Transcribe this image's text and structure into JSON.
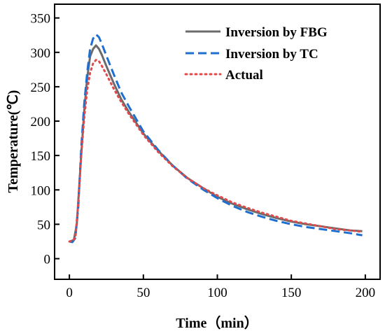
{
  "chart_data": {
    "type": "line",
    "xlabel": "Time（min）",
    "ylabel": "Temperature(℃)",
    "xlim": [
      -10,
      210
    ],
    "ylim": [
      -30,
      370
    ],
    "x_ticks": [
      0,
      50,
      100,
      150,
      200
    ],
    "y_ticks": [
      0,
      50,
      100,
      150,
      200,
      250,
      300,
      350
    ],
    "x_tick_labels": [
      "0",
      "50",
      "100",
      "150",
      "200"
    ],
    "y_tick_labels": [
      "0",
      "50",
      "100",
      "150",
      "200",
      "250",
      "300",
      "350"
    ],
    "grid": false,
    "legend_position": "top-right",
    "series": [
      {
        "name": "Inversion by FBG",
        "color": "#6b6b6b",
        "style": "solid",
        "x": [
          0,
          3,
          5,
          8,
          10,
          12,
          14,
          16,
          18,
          20,
          22,
          25,
          30,
          35,
          40,
          50,
          60,
          70,
          80,
          90,
          100,
          110,
          120,
          130,
          140,
          150,
          160,
          170,
          180,
          190,
          198
        ],
        "y": [
          25,
          27,
          50,
          150,
          215,
          262,
          294,
          305,
          310,
          305,
          296,
          280,
          255,
          232,
          214,
          182,
          157,
          135,
          117,
          103,
          90,
          80,
          72,
          65,
          59,
          54,
          50,
          47,
          44,
          41,
          40
        ]
      },
      {
        "name": "Inversion by TC",
        "color": "#1f6fd0",
        "style": "dashed",
        "x": [
          0,
          2,
          4,
          6,
          8,
          10,
          12,
          14,
          16,
          18,
          20,
          22,
          25,
          30,
          35,
          40,
          50,
          60,
          70,
          80,
          90,
          100,
          110,
          120,
          130,
          140,
          150,
          160,
          170,
          180,
          190,
          198
        ],
        "y": [
          25,
          24,
          30,
          75,
          160,
          225,
          270,
          305,
          320,
          326,
          322,
          312,
          295,
          268,
          242,
          222,
          185,
          158,
          135,
          116,
          101,
          88,
          77,
          68,
          61,
          55,
          50,
          46,
          43,
          40,
          37,
          34
        ]
      },
      {
        "name": "Actual",
        "color": "#e04a4a",
        "style": "dotted",
        "x": [
          0,
          2,
          4,
          6,
          8,
          10,
          12,
          14,
          16,
          18,
          20,
          22,
          25,
          30,
          35,
          40,
          50,
          60,
          70,
          80,
          90,
          100,
          110,
          120,
          130,
          140,
          150,
          160,
          170,
          180,
          190,
          198
        ],
        "y": [
          25,
          26,
          30,
          80,
          150,
          205,
          245,
          270,
          284,
          289,
          287,
          280,
          268,
          247,
          228,
          211,
          180,
          155,
          134,
          117,
          103,
          92,
          82,
          74,
          67,
          61,
          55,
          51,
          47,
          43,
          41,
          39
        ]
      }
    ]
  }
}
